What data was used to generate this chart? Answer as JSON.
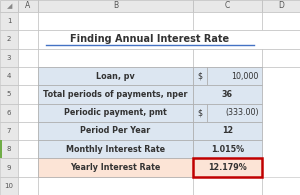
{
  "title": "Finding Annual Interest Rate",
  "rows": [
    {
      "label": "Loan, pv",
      "val1": "$",
      "val2": "10,000",
      "label_bg": "#dce6f1",
      "value_bg": "#dce6f1",
      "bold": true,
      "highlight": false
    },
    {
      "label": "Total periods of payments, nper",
      "val1": "",
      "val2": "36",
      "label_bg": "#dce6f1",
      "value_bg": "#dce6f1",
      "bold": true,
      "highlight": false
    },
    {
      "label": "Periodic payment, pmt",
      "val1": "$",
      "val2": "(333.00)",
      "label_bg": "#dce6f1",
      "value_bg": "#dce6f1",
      "bold": true,
      "highlight": false
    },
    {
      "label": "Period Per Year",
      "val1": "",
      "val2": "12",
      "label_bg": "#dce6f1",
      "value_bg": "#dce6f1",
      "bold": true,
      "highlight": false
    },
    {
      "label": "Monthly Interest Rate",
      "val1": "",
      "val2": "1.015%",
      "label_bg": "#dce6f1",
      "value_bg": "#dce6f1",
      "bold": true,
      "highlight": false
    },
    {
      "label": "Yearly Interest Rate",
      "val1": "",
      "val2": "12.179%",
      "label_bg": "#fce4d6",
      "value_bg": "#fce4d6",
      "bold": true,
      "highlight": true
    }
  ],
  "header_bg": "#e8e8e8",
  "header_border": "#bbbbbb",
  "row_num_bg": "#f2f2f2",
  "table_border": "#aaaaaa",
  "red_border": "#c00000",
  "title_color": "#333333",
  "text_color": "#333333",
  "bg_color": "#ffffff",
  "col_header_labels": [
    "A",
    "B",
    "C",
    "D"
  ],
  "row_numbers": [
    "1",
    "2",
    "3",
    "4",
    "5",
    "6",
    "7",
    "8",
    "9",
    "10"
  ],
  "title_underline": "#4472c4"
}
